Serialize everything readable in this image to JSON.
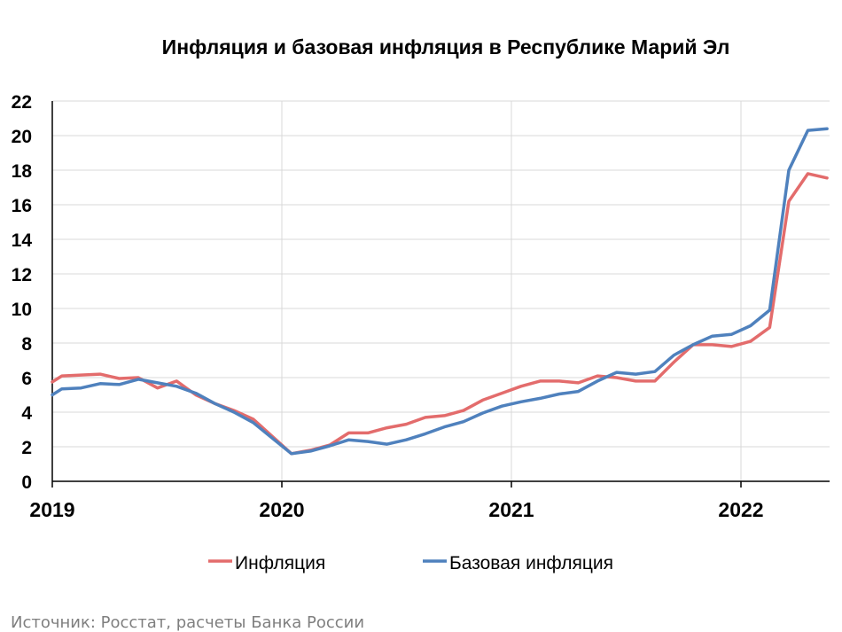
{
  "chart_data": {
    "type": "line",
    "title": "Инфляция и базовая инфляция в Республике Марий Эл",
    "xlabel": "",
    "ylabel": "",
    "ylim": [
      0,
      22
    ],
    "yticks": [
      "0",
      "2",
      "4",
      "6",
      "8",
      "10",
      "12",
      "14",
      "16",
      "18",
      "20",
      "22"
    ],
    "xticks": [
      "2019",
      "2020",
      "2021",
      "2022"
    ],
    "x": [
      "2019-01",
      "2019-02",
      "2019-03",
      "2019-04",
      "2019-05",
      "2019-06",
      "2019-07",
      "2019-08",
      "2019-09",
      "2019-10",
      "2019-11",
      "2019-12",
      "2020-01",
      "2020-02",
      "2020-03",
      "2020-04",
      "2020-05",
      "2020-06",
      "2020-07",
      "2020-08",
      "2020-09",
      "2020-10",
      "2020-11",
      "2020-12",
      "2021-01",
      "2021-02",
      "2021-03",
      "2021-04",
      "2021-05",
      "2021-06",
      "2021-07",
      "2021-08",
      "2021-09",
      "2021-10",
      "2021-11",
      "2021-12",
      "2022-01",
      "2022-02",
      "2022-03",
      "2022-04",
      "2022-05"
    ],
    "grid": true,
    "legend_position": "bottom",
    "series": [
      {
        "name": "Инфляция",
        "color": "#e36c6c",
        "values": [
          6.1,
          6.15,
          6.2,
          5.95,
          6.0,
          5.4,
          5.8,
          5.0,
          4.5,
          4.1,
          3.6,
          2.6,
          1.6,
          1.8,
          2.1,
          2.8,
          2.8,
          3.1,
          3.3,
          3.7,
          3.8,
          4.1,
          4.7,
          5.1,
          5.5,
          5.8,
          5.8,
          5.7,
          6.1,
          6.0,
          5.8,
          5.8,
          6.9,
          7.9,
          7.9,
          7.8,
          8.1,
          8.9,
          16.2,
          17.8,
          17.55
        ]
      },
      {
        "name": "Базовая инфляция",
        "color": "#4f81bd",
        "values": [
          5.35,
          5.4,
          5.65,
          5.6,
          5.9,
          5.7,
          5.5,
          5.1,
          4.5,
          4.0,
          3.4,
          2.5,
          1.6,
          1.75,
          2.05,
          2.4,
          2.3,
          2.15,
          2.4,
          2.75,
          3.15,
          3.45,
          3.95,
          4.35,
          4.6,
          4.8,
          5.05,
          5.2,
          5.8,
          6.3,
          6.2,
          6.35,
          7.3,
          7.9,
          8.4,
          8.5,
          9.0,
          9.9,
          18.0,
          20.3,
          20.4
        ]
      }
    ],
    "series_start_values": [
      5.75,
      5.0
    ],
    "source": "Источник: Росстат, расчеты Банка России"
  }
}
